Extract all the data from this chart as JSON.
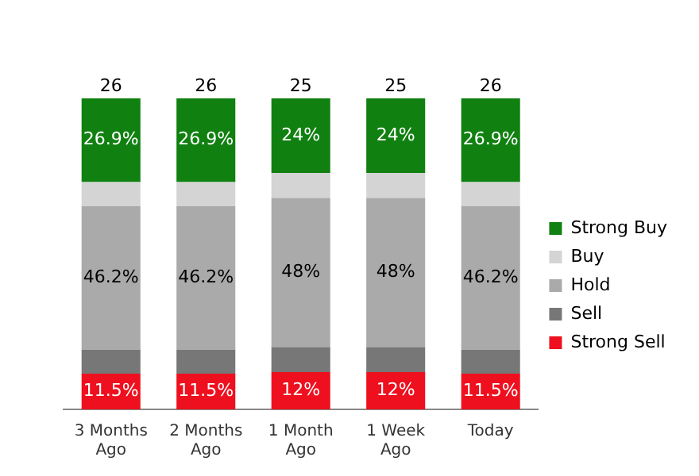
{
  "chart_data": {
    "type": "bar",
    "stacked": true,
    "legend": "right",
    "categories": [
      "3 Months Ago",
      "2 Months Ago",
      "1 Month Ago",
      "1 Week Ago",
      "Today"
    ],
    "series": [
      {
        "name": "Strong Sell",
        "color": "#ee101e",
        "values": [
          11.5,
          11.5,
          12,
          12,
          11.5
        ],
        "value_labels": [
          "11.5%",
          "11.5%",
          "12%",
          "12%",
          "11.5%"
        ]
      },
      {
        "name": "Sell",
        "color": "#777777",
        "values": [
          7.7,
          7.7,
          8,
          8,
          7.7
        ]
      },
      {
        "name": "Hold",
        "color": "#aaaaaa",
        "values": [
          46.2,
          46.2,
          48,
          48,
          46.2
        ],
        "value_labels": [
          "46.2%",
          "46.2%",
          "48%",
          "48%",
          "46.2%"
        ]
      },
      {
        "name": "Buy",
        "color": "#d4d4d4",
        "values": [
          7.7,
          7.7,
          8,
          8,
          7.7
        ]
      },
      {
        "name": "Strong Buy",
        "color": "#108010",
        "values": [
          26.9,
          26.9,
          24,
          24,
          26.9
        ],
        "value_labels": [
          "26.9%",
          "26.9%",
          "24%",
          "24%",
          "26.9%"
        ]
      }
    ],
    "annotations": [
      {
        "text": "26",
        "x": "3 Months Ago",
        "y": 100
      },
      {
        "text": "26",
        "x": "2 Months Ago",
        "y": 100
      },
      {
        "text": "25",
        "x": "1 Month Ago",
        "y": 100
      },
      {
        "text": "25",
        "x": "1 Week Ago",
        "y": 100
      },
      {
        "text": "26",
        "x": "Today",
        "y": 100
      }
    ]
  }
}
